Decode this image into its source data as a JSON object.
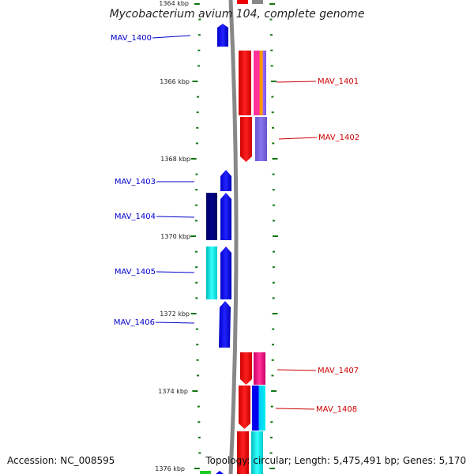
{
  "title": "Mycobacterium avium 104, complete genome",
  "accession": "Accession: NC_008595",
  "summary": "Topology: circular; Length: 5,475,491 bp; Genes: 5,170",
  "tick_labels": [
    "1364 kbp",
    "1366 kbp",
    "1368 kbp",
    "1370 kbp",
    "1372 kbp",
    "1374 kbp",
    "1376 kbp"
  ],
  "gene_labels_left": [
    "MAV_1400",
    "MAV_1403",
    "MAV_1404",
    "MAV_1405",
    "MAV_1406"
  ],
  "gene_labels_right": [
    "MAV_1401",
    "MAV_1402",
    "MAV_1407",
    "MAV_1408"
  ],
  "colors": {
    "left_strand": "#0000ee",
    "right_strand": "#ee0000",
    "left_label": "#0000cc",
    "right_label": "#cc0000",
    "tick": "#117711",
    "backbone": "#888888"
  }
}
